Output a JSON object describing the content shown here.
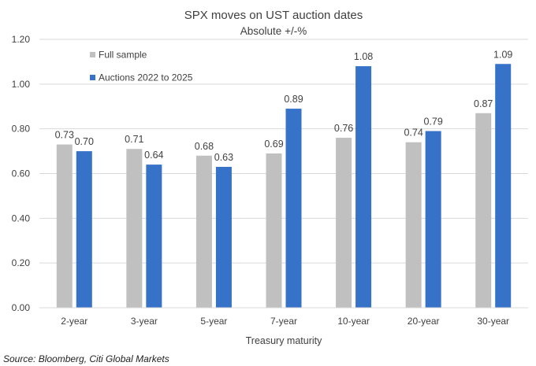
{
  "chart_data": {
    "type": "bar",
    "title": "SPX moves on UST auction dates",
    "subtitle": "Absolute +/-%",
    "xlabel": "Treasury maturity",
    "ylabel": "",
    "ylim": [
      0,
      1.2
    ],
    "yticks": [
      "0.00",
      "0.20",
      "0.40",
      "0.60",
      "0.80",
      "1.00",
      "1.20"
    ],
    "grid": true,
    "legend_position": "top-left",
    "categories": [
      "2-year",
      "3-year",
      "5-year",
      "7-year",
      "10-year",
      "20-year",
      "30-year"
    ],
    "series": [
      {
        "name": "Full sample",
        "color": "#c0c0c0",
        "values": [
          0.73,
          0.71,
          0.68,
          0.69,
          0.76,
          0.74,
          0.87
        ],
        "labels": [
          "0.73",
          "0.71",
          "0.68",
          "0.69",
          "0.76",
          "0.74",
          "0.87"
        ]
      },
      {
        "name": "Auctions 2022 to 2025",
        "color": "#3572c8",
        "values": [
          0.7,
          0.64,
          0.63,
          0.89,
          1.08,
          0.79,
          1.09
        ],
        "labels": [
          "0.70",
          "0.64",
          "0.63",
          "0.89",
          "1.08",
          "0.79",
          "1.09"
        ]
      }
    ]
  },
  "source": "Source: Bloomberg, Citi Global Markets"
}
